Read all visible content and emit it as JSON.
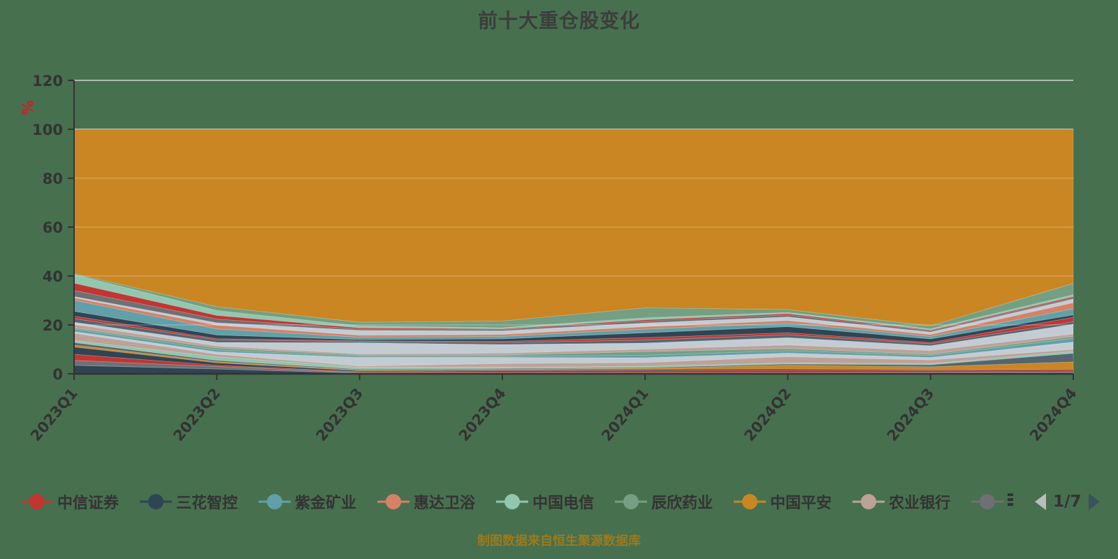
{
  "title": {
    "text": "前十大重仓股变化"
  },
  "y_axis": {
    "unit": "%",
    "tick_labels": [
      "0",
      "20",
      "40",
      "60",
      "80",
      "100",
      "120"
    ],
    "max": 120
  },
  "x_axis": {
    "tick_labels": [
      "2023Q1",
      "2023Q2",
      "2023Q3",
      "2023Q4",
      "2024Q1",
      "2024Q2",
      "2024Q3",
      "2024Q4"
    ]
  },
  "footer": {
    "text": "制图数据来自恒生聚源数据库"
  },
  "legend": {
    "items": [
      {
        "label": "中信证券",
        "color": "#c23531",
        "clipped": false
      },
      {
        "label": "三花智控",
        "color": "#2f4554",
        "clipped": false
      },
      {
        "label": "紫金矿业",
        "color": "#61a0a8",
        "clipped": false
      },
      {
        "label": "惠达卫浴",
        "color": "#d48265",
        "clipped": false
      },
      {
        "label": "中国电信",
        "color": "#91c7ae",
        "clipped": false
      },
      {
        "label": "辰欣药业",
        "color": "#749f83",
        "clipped": false
      },
      {
        "label": "中国平安",
        "color": "#ca8622",
        "clipped": false
      },
      {
        "label": "农业银行",
        "color": "#bda29a",
        "clipped": false
      },
      {
        "label": "",
        "color": "#6e7074",
        "clipped": true
      }
    ],
    "page": "1/7",
    "prev_enabled": false,
    "next_enabled": true
  },
  "chart_data": {
    "type": "area",
    "stacked": true,
    "unit": "%",
    "title": "前十大重仓股变化",
    "ylim": [
      0,
      120
    ],
    "grid_step": 20,
    "legend_position": "bottom",
    "categories": [
      "2023Q1",
      "2023Q2",
      "2023Q3",
      "2023Q4",
      "2024Q1",
      "2024Q2",
      "2024Q3",
      "2024Q4"
    ],
    "series": [
      {
        "name": "",
        "color": "#2f4554",
        "values": [
          3.5,
          2,
          0.3,
          0.3,
          0.3,
          0.3,
          0.3,
          0.3
        ]
      },
      {
        "name": "",
        "color": "#6e7074",
        "values": [
          2,
          1,
          0.3,
          0.2,
          0.2,
          0.2,
          0.3,
          0.5
        ]
      },
      {
        "name": "",
        "color": "#c23531",
        "values": [
          2.5,
          0.5,
          0.3,
          0.8,
          0.8,
          1,
          0.8,
          0.8
        ]
      },
      {
        "name": "",
        "color": "#2f4554",
        "values": [
          3,
          1,
          0.4,
          0.3,
          0.5,
          0.5,
          0.3,
          0.3
        ]
      },
      {
        "name": "",
        "color": "#ca8622",
        "values": [
          0.8,
          0.5,
          0.3,
          0.3,
          0.5,
          1.5,
          1.2,
          3
        ]
      },
      {
        "name": "",
        "color": "#546570",
        "values": [
          1,
          0.5,
          0.3,
          0.3,
          0.3,
          0.5,
          0.8,
          3.5
        ]
      },
      {
        "name": "",
        "color": "#91c7ae",
        "values": [
          0.8,
          1.5,
          0.8,
          0.5,
          0.5,
          0.5,
          0.5,
          0.8
        ]
      },
      {
        "name": "农业银行",
        "color": "#bda29a",
        "values": [
          3,
          1,
          0.5,
          1.5,
          1.5,
          2.5,
          1.5,
          0.8
        ]
      },
      {
        "name": "",
        "color": "#c4ccd3",
        "values": [
          0.7,
          1,
          3.5,
          2.5,
          2,
          1.5,
          1,
          3
        ]
      },
      {
        "name": "",
        "color": "#61a0a8",
        "values": [
          1,
          0.8,
          0.5,
          0.5,
          1,
          1,
          0.8,
          1.5
        ]
      },
      {
        "name": "",
        "color": "#749f83",
        "values": [
          0.5,
          0.8,
          0.5,
          0.5,
          1.5,
          0.8,
          0.5,
          0.8
        ]
      },
      {
        "name": "",
        "color": "#bda29a",
        "values": [
          1.5,
          0.8,
          0.5,
          0.8,
          1,
          1.5,
          1.5,
          1
        ]
      },
      {
        "name": "",
        "color": "#c4ccd3",
        "values": [
          0.8,
          1.5,
          4.5,
          3.5,
          2.5,
          3,
          2,
          4
        ]
      },
      {
        "name": "",
        "color": "#546570",
        "values": [
          1.5,
          1,
          0.5,
          0.8,
          1.2,
          1.2,
          0.8,
          1
        ]
      },
      {
        "name": "",
        "color": "#c23531",
        "values": [
          1,
          0.5,
          0.3,
          0.5,
          1,
          0.8,
          0.5,
          1.8
        ]
      },
      {
        "name": "三花智控",
        "color": "#2f4554",
        "values": [
          2,
          1.5,
          0.5,
          1,
          2,
          2.5,
          1.5,
          1
        ]
      },
      {
        "name": "紫金矿业",
        "color": "#61a0a8",
        "values": [
          4.5,
          2.5,
          1,
          1,
          1.5,
          1.5,
          1,
          2.5
        ]
      },
      {
        "name": "惠达卫浴",
        "color": "#d48265",
        "values": [
          1,
          1.5,
          0.8,
          0.8,
          1,
          1,
          0.8,
          2.5
        ]
      },
      {
        "name": "",
        "color": "#c4ccd3",
        "values": [
          0.5,
          1,
          2,
          1.5,
          1.5,
          1.5,
          1,
          1.5
        ]
      },
      {
        "name": "",
        "color": "#6e7074",
        "values": [
          2.5,
          1.5,
          0.5,
          0.5,
          0.8,
          0.8,
          0.5,
          0.5
        ]
      },
      {
        "name": "中信证券",
        "color": "#c23531",
        "values": [
          3,
          1.5,
          0.5,
          0.3,
          0.5,
          0.5,
          0.3,
          0.5
        ]
      },
      {
        "name": "中国电信",
        "color": "#91c7ae",
        "values": [
          3.5,
          2,
          0.8,
          0.5,
          0.8,
          0.5,
          0.5,
          0.8
        ]
      },
      {
        "name": "辰欣药业",
        "color": "#749f83",
        "values": [
          0.4,
          1.6,
          1.5,
          2.7,
          4.1,
          1.2,
          1.2,
          4.6
        ]
      },
      {
        "name": "中国平安",
        "color": "#ca8622",
        "values": [
          59,
          72.5,
          78.9,
          78.4,
          73,
          73.7,
          80.4,
          63
        ]
      }
    ],
    "colors": {
      "background": "#47704f",
      "axis": "#333333",
      "gridline": "#d2d2d2",
      "title": "#3d3d3d",
      "unit_label": "#d21f1f",
      "footer": "#9c7a1c"
    }
  }
}
